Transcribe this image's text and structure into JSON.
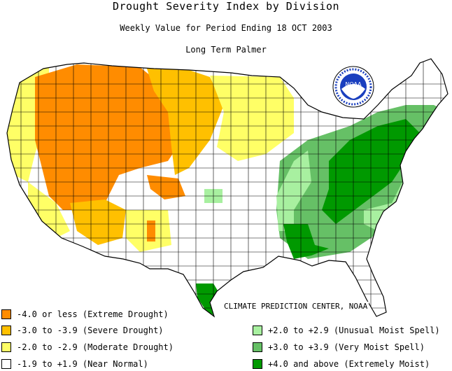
{
  "header": {
    "title": "Drought Severity Index by Division",
    "subtitle": "Weekly Value for Period Ending 18 OCT 2003",
    "index_name": "Long Term Palmer"
  },
  "logo": {
    "text": "NOAA",
    "ring_text": "NATIONAL OCEANIC AND ATMOSPHERIC ADMINISTRATION"
  },
  "credit": "CLIMATE PREDICTION CENTER, NOAA",
  "colors": {
    "extreme_drought": "#ff8c00",
    "severe_drought": "#ffc000",
    "moderate_drought": "#ffff66",
    "near_normal": "#ffffff",
    "unusual_moist": "#a8f0a0",
    "very_moist": "#66c066",
    "extremely_moist": "#009900"
  },
  "legend": {
    "drought": [
      {
        "label": "-4.0 or less (Extreme Drought)",
        "color": "#ff8c00"
      },
      {
        "label": "-3.0 to -3.9 (Severe Drought)",
        "color": "#ffc000"
      },
      {
        "label": "-2.0 to -2.9 (Moderate Drought)",
        "color": "#ffff66"
      },
      {
        "label": "-1.9 to +1.9 (Near Normal)",
        "color": "#ffffff"
      }
    ],
    "moist": [
      {
        "label": "+2.0 to +2.9 (Unusual Moist Spell)",
        "color": "#a8f0a0"
      },
      {
        "label": "+3.0 to +3.9 (Very Moist Spell)",
        "color": "#66c066"
      },
      {
        "label": "+4.0 and above (Extremely Moist)",
        "color": "#009900"
      }
    ]
  }
}
